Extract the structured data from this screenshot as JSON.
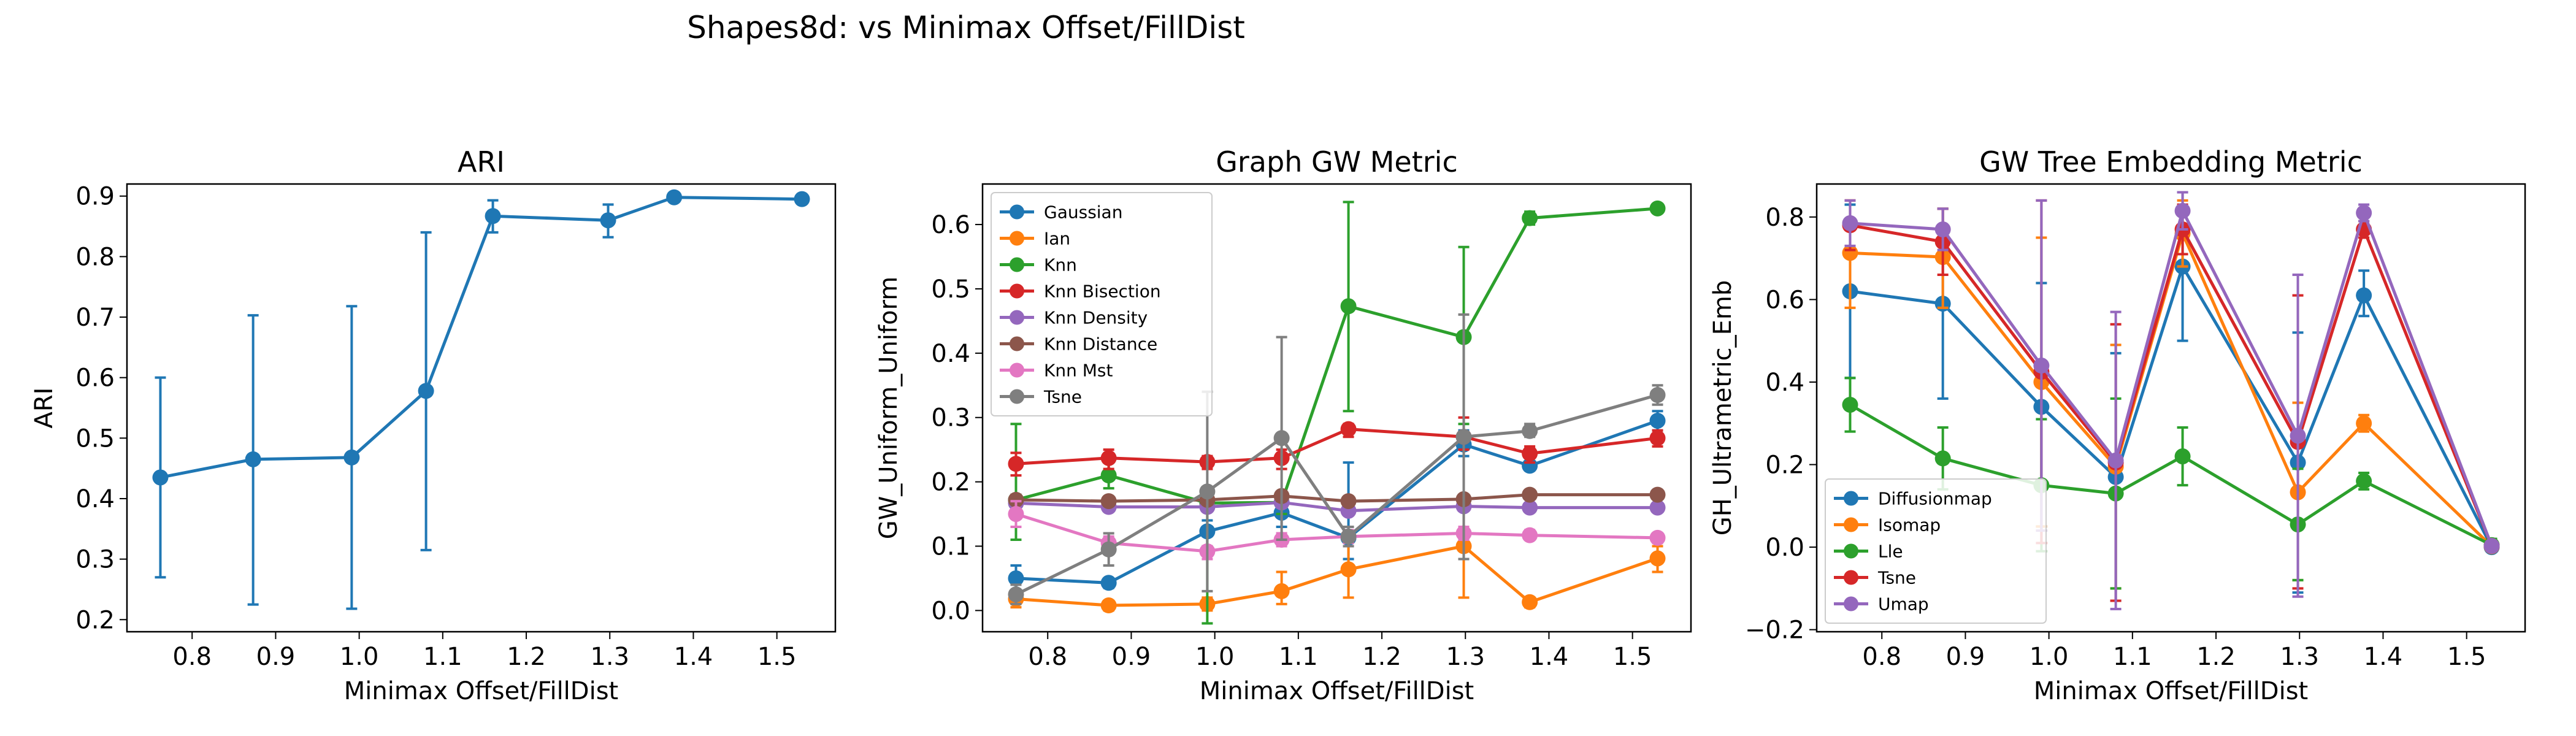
{
  "figure": {
    "suptitle": "Shapes8d: vs Minimax Offset/FillDist"
  },
  "chart_data": [
    {
      "type": "line",
      "title": "ARI",
      "xlabel": "Minimax Offset/FillDist",
      "ylabel": "ARI",
      "xlim": [
        0.722,
        1.57
      ],
      "ylim": [
        0.18,
        0.92
      ],
      "xticks": [
        0.8,
        0.9,
        1.0,
        1.1,
        1.2,
        1.3,
        1.4,
        1.5
      ],
      "yticks": [
        0.2,
        0.3,
        0.4,
        0.5,
        0.6,
        0.7,
        0.8,
        0.9
      ],
      "legend": "none",
      "series": [
        {
          "color": "#1f77b4",
          "x": [
            0.762,
            0.873,
            0.991,
            1.08,
            1.16,
            1.298,
            1.377,
            1.53
          ],
          "y": [
            0.435,
            0.465,
            0.468,
            0.578,
            0.867,
            0.86,
            0.898,
            0.895
          ],
          "err": [
            [
              0.27,
              0.6
            ],
            [
              0.225,
              0.703
            ],
            [
              0.218,
              0.718
            ],
            [
              0.315,
              0.84
            ],
            [
              0.84,
              0.893
            ],
            [
              0.832,
              0.886
            ],
            [
              0.895,
              0.9
            ],
            [
              0.892,
              0.898
            ]
          ]
        }
      ]
    },
    {
      "type": "line",
      "title": "Graph GW Metric",
      "xlabel": "Minimax Offset/FillDist",
      "ylabel": "GW_Uniform_Uniform",
      "xlim": [
        0.722,
        1.57
      ],
      "ylim": [
        -0.033,
        0.663
      ],
      "xticks": [
        0.8,
        0.9,
        1.0,
        1.1,
        1.2,
        1.3,
        1.4,
        1.5
      ],
      "yticks": [
        0.0,
        0.1,
        0.2,
        0.3,
        0.4,
        0.5,
        0.6
      ],
      "legend": "top-left",
      "series": [
        {
          "name": "Gaussian",
          "color": "#1f77b4",
          "x": [
            0.762,
            0.873,
            0.991,
            1.08,
            1.16,
            1.298,
            1.377,
            1.53
          ],
          "y": [
            0.05,
            0.043,
            0.123,
            0.152,
            0.113,
            0.258,
            0.225,
            0.295
          ],
          "err": [
            [
              0.03,
              0.07
            ],
            [
              0.035,
              0.05
            ],
            [
              0.1,
              0.14
            ],
            [
              0.13,
              0.17
            ],
            [
              0.08,
              0.23
            ],
            [
              0.24,
              0.28
            ],
            [
              0.22,
              0.23
            ],
            [
              0.28,
              0.31
            ]
          ]
        },
        {
          "name": "Ian",
          "color": "#ff7f0e",
          "x": [
            0.762,
            0.873,
            0.991,
            1.08,
            1.16,
            1.298,
            1.377,
            1.53
          ],
          "y": [
            0.018,
            0.008,
            0.01,
            0.03,
            0.064,
            0.1,
            0.013,
            0.081
          ],
          "err": [
            [
              0.005,
              0.03
            ],
            [
              0.0,
              0.015
            ],
            [
              0.0,
              0.02
            ],
            [
              0.01,
              0.06
            ],
            [
              0.02,
              0.11
            ],
            [
              0.02,
              0.18
            ],
            [
              0.005,
              0.02
            ],
            [
              0.06,
              0.1
            ]
          ]
        },
        {
          "name": "Knn",
          "color": "#2ca02c",
          "x": [
            0.762,
            0.873,
            0.991,
            1.08,
            1.16,
            1.298,
            1.377,
            1.53
          ],
          "y": [
            0.172,
            0.21,
            0.167,
            0.168,
            0.473,
            0.425,
            0.61,
            0.625
          ],
          "err": [
            [
              0.11,
              0.29
            ],
            [
              0.19,
              0.23
            ],
            [
              -0.02,
              0.19
            ],
            [
              0.15,
              0.18
            ],
            [
              0.31,
              0.635
            ],
            [
              0.29,
              0.565
            ],
            [
              0.6,
              0.62
            ],
            [
              0.62,
              0.63
            ]
          ]
        },
        {
          "name": "Knn Bisection",
          "color": "#d62728",
          "x": [
            0.762,
            0.873,
            0.991,
            1.08,
            1.16,
            1.298,
            1.377,
            1.53
          ],
          "y": [
            0.228,
            0.237,
            0.231,
            0.237,
            0.282,
            0.27,
            0.244,
            0.268
          ],
          "err": [
            [
              0.21,
              0.245
            ],
            [
              0.22,
              0.25
            ],
            [
              0.22,
              0.24
            ],
            [
              0.22,
              0.25
            ],
            [
              0.27,
              0.29
            ],
            [
              0.25,
              0.3
            ],
            [
              0.23,
              0.255
            ],
            [
              0.255,
              0.28
            ]
          ]
        },
        {
          "name": "Knn Density",
          "color": "#9467bd",
          "x": [
            0.762,
            0.873,
            0.991,
            1.08,
            1.16,
            1.298,
            1.377,
            1.53
          ],
          "y": [
            0.167,
            0.161,
            0.161,
            0.168,
            0.155,
            0.162,
            0.16,
            0.16
          ],
          "err": [
            [
              0.16,
              0.175
            ],
            [
              0.155,
              0.168
            ],
            [
              0.155,
              0.168
            ],
            [
              0.16,
              0.175
            ],
            [
              0.15,
              0.16
            ],
            [
              0.155,
              0.17
            ],
            [
              0.155,
              0.165
            ],
            [
              0.155,
              0.165
            ]
          ]
        },
        {
          "name": "Knn Distance",
          "color": "#8c564b",
          "x": [
            0.762,
            0.873,
            0.991,
            1.08,
            1.16,
            1.298,
            1.377,
            1.53
          ],
          "y": [
            0.172,
            0.17,
            0.172,
            0.178,
            0.17,
            0.173,
            0.18,
            0.18
          ],
          "err": [
            [
              0.165,
              0.18
            ],
            [
              0.165,
              0.175
            ],
            [
              0.165,
              0.18
            ],
            [
              0.17,
              0.185
            ],
            [
              0.165,
              0.175
            ],
            [
              0.165,
              0.18
            ],
            [
              0.175,
              0.185
            ],
            [
              0.175,
              0.185
            ]
          ]
        },
        {
          "name": "Knn Mst",
          "color": "#e377c2",
          "x": [
            0.762,
            0.873,
            0.991,
            1.08,
            1.16,
            1.298,
            1.377,
            1.53
          ],
          "y": [
            0.15,
            0.105,
            0.092,
            0.11,
            0.115,
            0.12,
            0.117,
            0.113
          ],
          "err": [
            [
              0.13,
              0.17
            ],
            [
              0.095,
              0.115
            ],
            [
              0.08,
              0.1
            ],
            [
              0.1,
              0.12
            ],
            [
              0.105,
              0.125
            ],
            [
              0.11,
              0.13
            ],
            [
              0.11,
              0.125
            ],
            [
              0.105,
              0.12
            ]
          ]
        },
        {
          "name": "Tsne",
          "color": "#7f7f7f",
          "x": [
            0.762,
            0.873,
            0.991,
            1.08,
            1.16,
            1.298,
            1.377,
            1.53
          ],
          "y": [
            0.025,
            0.095,
            0.185,
            0.268,
            0.115,
            0.27,
            0.279,
            0.335
          ],
          "err": [
            [
              0.01,
              0.04
            ],
            [
              0.07,
              0.12
            ],
            [
              0.03,
              0.34
            ],
            [
              0.11,
              0.425
            ],
            [
              0.1,
              0.13
            ],
            [
              0.08,
              0.46
            ],
            [
              0.27,
              0.29
            ],
            [
              0.32,
              0.35
            ]
          ]
        }
      ]
    },
    {
      "type": "line",
      "title": "GW Tree Embedding Metric",
      "xlabel": "Minimax Offset/FillDist",
      "ylabel": "GH_Ultrametric_Emb",
      "xlim": [
        0.722,
        1.57
      ],
      "ylim": [
        -0.205,
        0.88
      ],
      "xticks": [
        0.8,
        0.9,
        1.0,
        1.1,
        1.2,
        1.3,
        1.4,
        1.5
      ],
      "yticks": [
        -0.2,
        0.0,
        0.2,
        0.4,
        0.6,
        0.8
      ],
      "legend": "bottom-left",
      "series": [
        {
          "name": "Diffusionmap",
          "color": "#1f77b4",
          "x": [
            0.762,
            0.873,
            0.991,
            1.08,
            1.16,
            1.298,
            1.377,
            1.53
          ],
          "y": [
            0.62,
            0.59,
            0.34,
            0.17,
            0.68,
            0.205,
            0.61,
            0.0
          ],
          "err": [
            [
              0.41,
              0.83
            ],
            [
              0.36,
              0.82
            ],
            [
              0.05,
              0.64
            ],
            [
              -0.13,
              0.47
            ],
            [
              0.5,
              0.86
            ],
            [
              -0.11,
              0.52
            ],
            [
              0.56,
              0.67
            ],
            [
              -0.01,
              0.01
            ]
          ]
        },
        {
          "name": "Isomap",
          "color": "#ff7f0e",
          "x": [
            0.762,
            0.873,
            0.991,
            1.08,
            1.16,
            1.298,
            1.377,
            1.53
          ],
          "y": [
            0.713,
            0.703,
            0.4,
            0.195,
            0.76,
            0.133,
            0.3,
            0.002
          ],
          "err": [
            [
              0.58,
              0.84
            ],
            [
              0.58,
              0.82
            ],
            [
              0.05,
              0.75
            ],
            [
              -0.1,
              0.49
            ],
            [
              0.68,
              0.84
            ],
            [
              -0.08,
              0.35
            ],
            [
              0.28,
              0.32
            ],
            [
              -0.01,
              0.01
            ]
          ]
        },
        {
          "name": "Lle",
          "color": "#2ca02c",
          "x": [
            0.762,
            0.873,
            0.991,
            1.08,
            1.16,
            1.298,
            1.377,
            1.53
          ],
          "y": [
            0.345,
            0.215,
            0.15,
            0.13,
            0.22,
            0.055,
            0.16,
            0.005
          ],
          "err": [
            [
              0.28,
              0.41
            ],
            [
              0.14,
              0.29
            ],
            [
              -0.01,
              0.31
            ],
            [
              -0.1,
              0.36
            ],
            [
              0.15,
              0.29
            ],
            [
              -0.08,
              0.19
            ],
            [
              0.14,
              0.18
            ],
            [
              -0.01,
              0.02
            ]
          ]
        },
        {
          "name": "Tsne",
          "color": "#d62728",
          "x": [
            0.762,
            0.873,
            0.991,
            1.08,
            1.16,
            1.298,
            1.377,
            1.53
          ],
          "y": [
            0.78,
            0.74,
            0.425,
            0.205,
            0.77,
            0.255,
            0.77,
            0.003
          ],
          "err": [
            [
              0.72,
              0.84
            ],
            [
              0.66,
              0.82
            ],
            [
              0.01,
              0.84
            ],
            [
              -0.13,
              0.54
            ],
            [
              0.71,
              0.83
            ],
            [
              -0.1,
              0.61
            ],
            [
              0.75,
              0.79
            ],
            [
              -0.01,
              0.01
            ]
          ]
        },
        {
          "name": "Umap",
          "color": "#9467bd",
          "x": [
            0.762,
            0.873,
            0.991,
            1.08,
            1.16,
            1.298,
            1.377,
            1.53
          ],
          "y": [
            0.785,
            0.77,
            0.44,
            0.21,
            0.815,
            0.27,
            0.81,
            0.003
          ],
          "err": [
            [
              0.73,
              0.84
            ],
            [
              0.72,
              0.82
            ],
            [
              0.04,
              0.84
            ],
            [
              -0.15,
              0.57
            ],
            [
              0.77,
              0.86
            ],
            [
              -0.12,
              0.66
            ],
            [
              0.79,
              0.83
            ],
            [
              -0.01,
              0.01
            ]
          ]
        }
      ]
    }
  ]
}
